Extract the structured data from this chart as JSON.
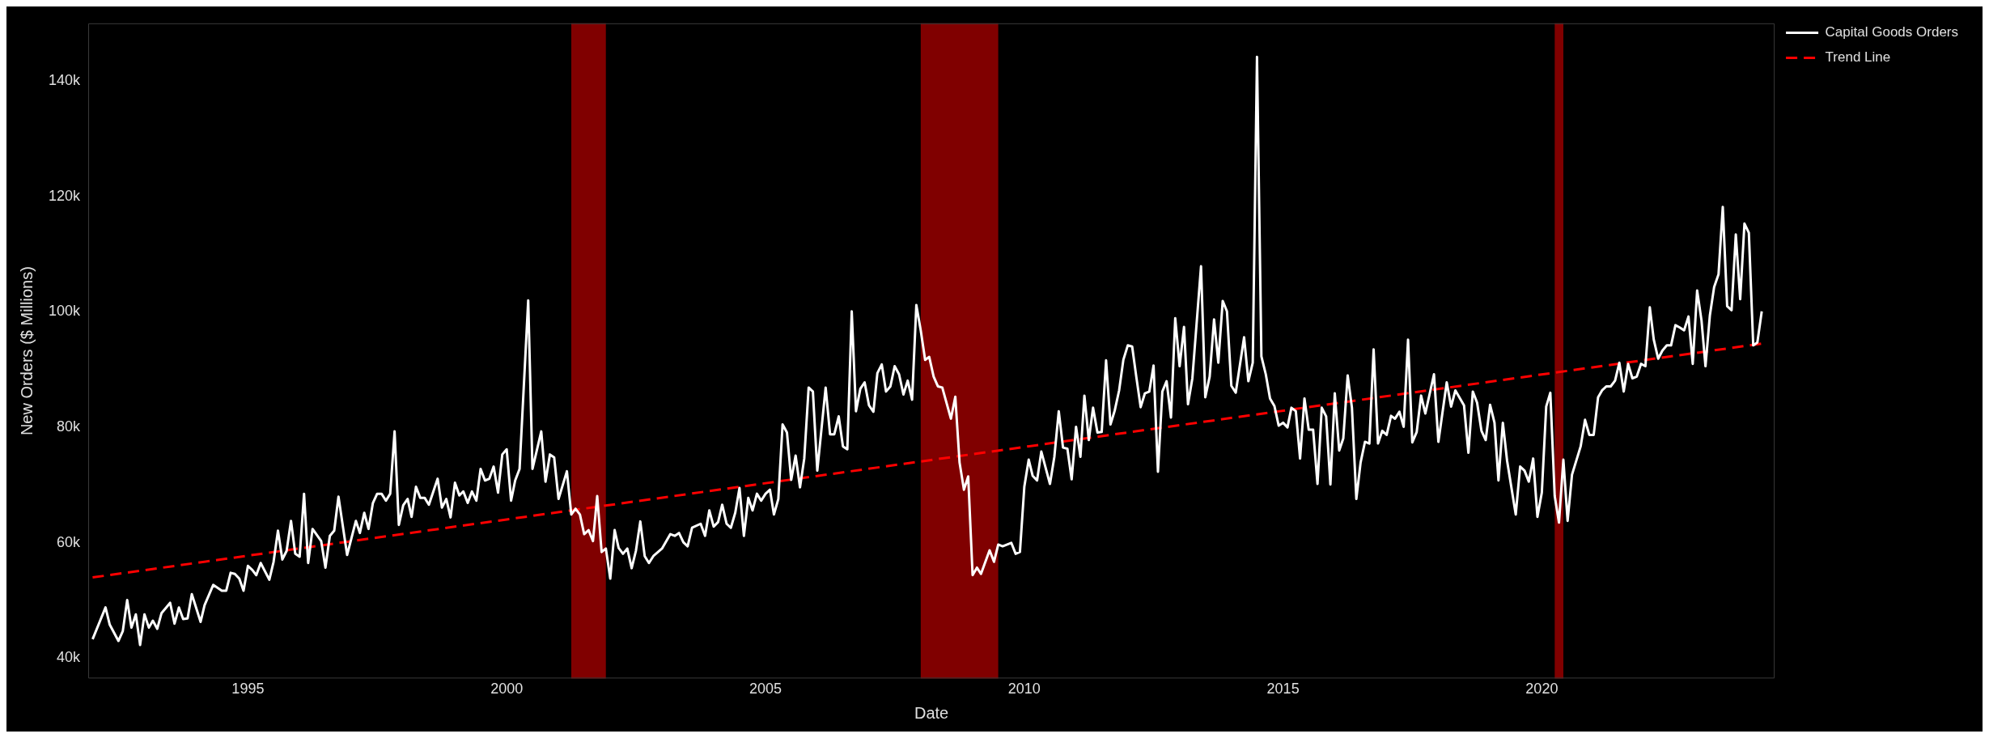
{
  "chart_data": {
    "type": "line",
    "xlabel": "Date",
    "ylabel": "New Orders ($ Millions)",
    "x": [
      "1992-01",
      "1992-04",
      "1992-05",
      "1992-07",
      "1992-08",
      "1992-09",
      "1992-10",
      "1992-11",
      "1992-12",
      "1993-01",
      "1993-02",
      "1993-03",
      "1993-04",
      "1993-05",
      "1993-07",
      "1993-08",
      "1993-09",
      "1993-10",
      "1993-11",
      "1993-12",
      "1994-02",
      "1994-03",
      "1994-05",
      "1994-07",
      "1994-08",
      "1994-09",
      "1994-10",
      "1994-11",
      "1994-12",
      "1995-01",
      "1995-02",
      "1995-03",
      "1995-04",
      "1995-06",
      "1995-07",
      "1995-08",
      "1995-09",
      "1995-10",
      "1995-11",
      "1995-12",
      "1996-01",
      "1996-02",
      "1996-03",
      "1996-04",
      "1996-06",
      "1996-07",
      "1996-08",
      "1996-09",
      "1996-10",
      "1996-12",
      "1997-02",
      "1997-03",
      "1997-04",
      "1997-05",
      "1997-06",
      "1997-07",
      "1997-08",
      "1997-09",
      "1997-10",
      "1997-11",
      "1997-12",
      "1998-01",
      "1998-02",
      "1998-03",
      "1998-04",
      "1998-05",
      "1998-06",
      "1998-07",
      "1998-09",
      "1998-10",
      "1998-11",
      "1998-12",
      "1999-01",
      "1999-02",
      "1999-03",
      "1999-04",
      "1999-05",
      "1999-06",
      "1999-07",
      "1999-08",
      "1999-09",
      "1999-10",
      "1999-11",
      "1999-12",
      "2000-01",
      "2000-02",
      "2000-03",
      "2000-04",
      "2000-06",
      "2000-07",
      "2000-09",
      "2000-10",
      "2000-11",
      "2000-12",
      "2001-01",
      "2001-03",
      "2001-04",
      "2001-05",
      "2001-06",
      "2001-07",
      "2001-08",
      "2001-09",
      "2001-10",
      "2001-11",
      "2001-12",
      "2002-01",
      "2002-02",
      "2002-03",
      "2002-04",
      "2002-05",
      "2002-06",
      "2002-07",
      "2002-08",
      "2002-09",
      "2002-10",
      "2002-11",
      "2003-01",
      "2003-03",
      "2003-04",
      "2003-05",
      "2003-06",
      "2003-07",
      "2003-08",
      "2003-10",
      "2003-11",
      "2003-12",
      "2004-01",
      "2004-02",
      "2004-03",
      "2004-04",
      "2004-05",
      "2004-06",
      "2004-07",
      "2004-08",
      "2004-09",
      "2004-10",
      "2004-11",
      "2004-12",
      "2005-01",
      "2005-02",
      "2005-03",
      "2005-04",
      "2005-05",
      "2005-06",
      "2005-07",
      "2005-08",
      "2005-09",
      "2005-10",
      "2005-11",
      "2005-12",
      "2006-01",
      "2006-03",
      "2006-04",
      "2006-05",
      "2006-06",
      "2006-07",
      "2006-08",
      "2006-09",
      "2006-10",
      "2006-11",
      "2006-12",
      "2007-01",
      "2007-02",
      "2007-03",
      "2007-04",
      "2007-05",
      "2007-06",
      "2007-07",
      "2007-08",
      "2007-09",
      "2007-10",
      "2007-11",
      "2007-12",
      "2008-01",
      "2008-02",
      "2008-03",
      "2008-04",
      "2008-05",
      "2008-06",
      "2008-08",
      "2008-09",
      "2008-10",
      "2008-11",
      "2008-12",
      "2009-01",
      "2009-02",
      "2009-03",
      "2009-05",
      "2009-06",
      "2009-07",
      "2009-08",
      "2009-10",
      "2009-11",
      "2009-12",
      "2010-01",
      "2010-02",
      "2010-03",
      "2010-04",
      "2010-05",
      "2010-07",
      "2010-08",
      "2010-09",
      "2010-10",
      "2010-11",
      "2010-12",
      "2011-01",
      "2011-02",
      "2011-03",
      "2011-04",
      "2011-05",
      "2011-06",
      "2011-07",
      "2011-08",
      "2011-09",
      "2011-10",
      "2011-11",
      "2011-12",
      "2012-01",
      "2012-02",
      "2012-03",
      "2012-04",
      "2012-05",
      "2012-06",
      "2012-07",
      "2012-08",
      "2012-09",
      "2012-10",
      "2012-11",
      "2012-12",
      "2013-01",
      "2013-02",
      "2013-03",
      "2013-04",
      "2013-06",
      "2013-07",
      "2013-08",
      "2013-09",
      "2013-10",
      "2013-11",
      "2013-12",
      "2014-01",
      "2014-02",
      "2014-04",
      "2014-05",
      "2014-06",
      "2014-07",
      "2014-08",
      "2014-09",
      "2014-10",
      "2014-11",
      "2014-12",
      "2015-01",
      "2015-02",
      "2015-03",
      "2015-04",
      "2015-05",
      "2015-06",
      "2015-07",
      "2015-08",
      "2015-09",
      "2015-10",
      "2015-11",
      "2015-12",
      "2016-01",
      "2016-02",
      "2016-03",
      "2016-04",
      "2016-05",
      "2016-06",
      "2016-07",
      "2016-08",
      "2016-09",
      "2016-10",
      "2016-11",
      "2016-12",
      "2017-01",
      "2017-02",
      "2017-03",
      "2017-04",
      "2017-05",
      "2017-06",
      "2017-07",
      "2017-08",
      "2017-09",
      "2017-10",
      "2017-12",
      "2018-01",
      "2018-03",
      "2018-04",
      "2018-05",
      "2018-07",
      "2018-08",
      "2018-09",
      "2018-10",
      "2018-11",
      "2018-12",
      "2019-01",
      "2019-02",
      "2019-03",
      "2019-04",
      "2019-05",
      "2019-07",
      "2019-08",
      "2019-09",
      "2019-10",
      "2019-11",
      "2019-12",
      "2020-01",
      "2020-02",
      "2020-03",
      "2020-04",
      "2020-05",
      "2020-06",
      "2020-07",
      "2020-08",
      "2020-10",
      "2020-11",
      "2020-12",
      "2021-01",
      "2021-02",
      "2021-03",
      "2021-04",
      "2021-05",
      "2021-06",
      "2021-07",
      "2021-08",
      "2021-09",
      "2021-10",
      "2021-11",
      "2021-12",
      "2022-01",
      "2022-02",
      "2022-03",
      "2022-04",
      "2022-05",
      "2022-06",
      "2022-07",
      "2022-08",
      "2022-09",
      "2022-10",
      "2022-11",
      "2022-12",
      "2023-01",
      "2023-02",
      "2023-03",
      "2023-04",
      "2023-05",
      "2023-06",
      "2023-07",
      "2023-08",
      "2023-09",
      "2023-10",
      "2023-11",
      "2023-12",
      "2024-01",
      "2024-02",
      "2024-03",
      "2024-04"
    ],
    "series": [
      {
        "name": "Capital Goods Orders",
        "color": "#ffffff",
        "values": [
          43300,
          48800,
          45800,
          43000,
          44700,
          50100,
          45300,
          47600,
          42300,
          47600,
          45300,
          46500,
          45100,
          47800,
          49600,
          46000,
          48800,
          46800,
          46900,
          51100,
          46300,
          49200,
          52700,
          51700,
          51700,
          54800,
          54600,
          53800,
          51700,
          56000,
          55300,
          54400,
          56500,
          53600,
          56700,
          62100,
          57100,
          58600,
          63800,
          58100,
          57600,
          68500,
          56500,
          62400,
          60300,
          55700,
          61200,
          62100,
          68000,
          57900,
          63800,
          61700,
          65200,
          62400,
          66900,
          68500,
          68500,
          67300,
          68500,
          79300,
          63100,
          66500,
          67600,
          64500,
          69700,
          67800,
          67800,
          66600,
          71100,
          66100,
          67600,
          64400,
          70400,
          68200,
          68900,
          66900,
          68900,
          67300,
          72800,
          70800,
          71100,
          73200,
          68700,
          75300,
          76200,
          67300,
          70800,
          72800,
          102000,
          72800,
          79300,
          70600,
          75300,
          74800,
          67600,
          72400,
          64900,
          65900,
          64900,
          61500,
          62200,
          60300,
          68100,
          58400,
          59000,
          53800,
          62200,
          59100,
          58100,
          59000,
          55600,
          58600,
          63700,
          57700,
          56500,
          57700,
          59000,
          61500,
          61200,
          61700,
          60100,
          59400,
          62600,
          63300,
          61200,
          65600,
          62800,
          63600,
          66600,
          63300,
          62600,
          65200,
          69500,
          61200,
          67800,
          65600,
          68500,
          67300,
          68500,
          69200,
          64900,
          67600,
          80500,
          79100,
          70900,
          75100,
          69600,
          74600,
          86900,
          86200,
          72500,
          86900,
          78800,
          78800,
          81900,
          76700,
          76200,
          100100,
          82800,
          86700,
          87800,
          83800,
          82700,
          89400,
          90900,
          86200,
          87100,
          90600,
          89200,
          85700,
          88100,
          84800,
          101200,
          96800,
          91700,
          92200,
          88800,
          87100,
          86900,
          81500,
          85300,
          73900,
          69200,
          71500,
          54400,
          55700,
          54600,
          58700,
          56700,
          59700,
          59400,
          60000,
          58100,
          58400,
          69700,
          74400,
          71600,
          70800,
          75800,
          70200,
          74900,
          82800,
          76500,
          76300,
          71000,
          80100,
          74900,
          85500,
          77800,
          83400,
          79100,
          79200,
          91600,
          80500,
          82900,
          86400,
          91700,
          94200,
          94000,
          88800,
          83500,
          85900,
          86200,
          90700,
          72300,
          86200,
          88000,
          81700,
          98900,
          90600,
          97400,
          84000,
          88500,
          107900,
          85200,
          88800,
          98700,
          91200,
          101900,
          100100,
          87200,
          86000,
          95600,
          88000,
          91200,
          144200,
          92300,
          89200,
          85000,
          83700,
          80300,
          80800,
          80000,
          83400,
          82800,
          74600,
          85000,
          79600,
          79600,
          70200,
          83400,
          81900,
          70100,
          85900,
          76000,
          78100,
          89000,
          83400,
          67600,
          73900,
          77500,
          77200,
          93500,
          77200,
          79400,
          78700,
          82000,
          81500,
          82700,
          80100,
          95200,
          77400,
          79200,
          85500,
          82400,
          89200,
          77500,
          87800,
          83600,
          86400,
          83800,
          75600,
          86200,
          84300,
          79400,
          77800,
          83900,
          80800,
          70800,
          80800,
          74200,
          64900,
          73200,
          72500,
          70600,
          74600,
          64500,
          68700,
          83600,
          86000,
          68100,
          63500,
          74400,
          63800,
          71800,
          76700,
          81300,
          78700,
          78700,
          85200,
          86400,
          87100,
          87100,
          88100,
          91200,
          86200,
          91000,
          88500,
          88800,
          91000,
          90600,
          100800,
          95200,
          91900,
          93300,
          94200,
          94200,
          97700,
          97300,
          96800,
          99200,
          91000,
          103700,
          98500,
          90600,
          99400,
          104300,
          106500,
          118200,
          101000,
          100300,
          113400,
          102200,
          115300,
          113700,
          94200,
          94700,
          100100
        ]
      },
      {
        "name": "Trend Line",
        "type": "line",
        "color": "#ff0000",
        "line_style": "dashed",
        "x": [
          "1992-01",
          "2024-04"
        ],
        "values": [
          54000,
          94500
        ]
      }
    ],
    "xlim": [
      "1991-12",
      "2024-07"
    ],
    "xticks": [
      "1995",
      "2000",
      "2005",
      "2010",
      "2015",
      "2020"
    ],
    "ylim": [
      36500,
      150000
    ],
    "yticks": [
      {
        "value": 40000,
        "label": "40k"
      },
      {
        "value": 60000,
        "label": "60k"
      },
      {
        "value": 80000,
        "label": "80k"
      },
      {
        "value": 100000,
        "label": "100k"
      },
      {
        "value": 120000,
        "label": "120k"
      },
      {
        "value": 140000,
        "label": "140k"
      }
    ],
    "bands": [
      {
        "axis": "x",
        "from": "2001-04",
        "to": "2001-12",
        "color": "#800000"
      },
      {
        "axis": "x",
        "from": "2008-01",
        "to": "2009-07",
        "color": "#800000"
      },
      {
        "axis": "x",
        "from": "2020-04",
        "to": "2020-06",
        "color": "#800000"
      }
    ],
    "grid": false,
    "marker": "none",
    "legend": "top right"
  }
}
